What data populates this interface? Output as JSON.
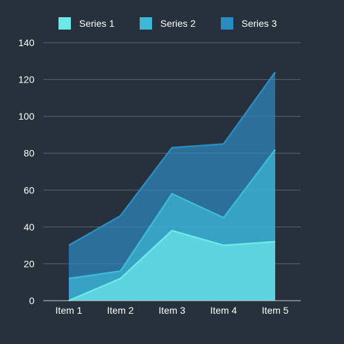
{
  "chart_data": {
    "type": "area",
    "stacked": true,
    "categories": [
      "Item 1",
      "Item 2",
      "Item 3",
      "Item 4",
      "Item 5"
    ],
    "series": [
      {
        "name": "Series 1",
        "values": [
          0,
          12,
          38,
          30,
          32
        ],
        "color": "#6ce8e8"
      },
      {
        "name": "Series 2",
        "values": [
          12,
          4,
          20,
          15,
          50
        ],
        "color": "#3fb8d8"
      },
      {
        "name": "Series 3",
        "values": [
          18,
          30,
          25,
          40,
          42
        ],
        "color": "#2e8bc0"
      }
    ],
    "title": "",
    "xlabel": "",
    "ylabel": "",
    "ylim": [
      0,
      140
    ],
    "yticks": [
      0,
      20,
      40,
      60,
      80,
      100,
      120,
      140
    ],
    "grid": true,
    "legend": "top",
    "background": "#27313b",
    "gridline_color": "#5a6570",
    "axis_color": "#c8cdd2",
    "text_color": "#ffffff"
  }
}
